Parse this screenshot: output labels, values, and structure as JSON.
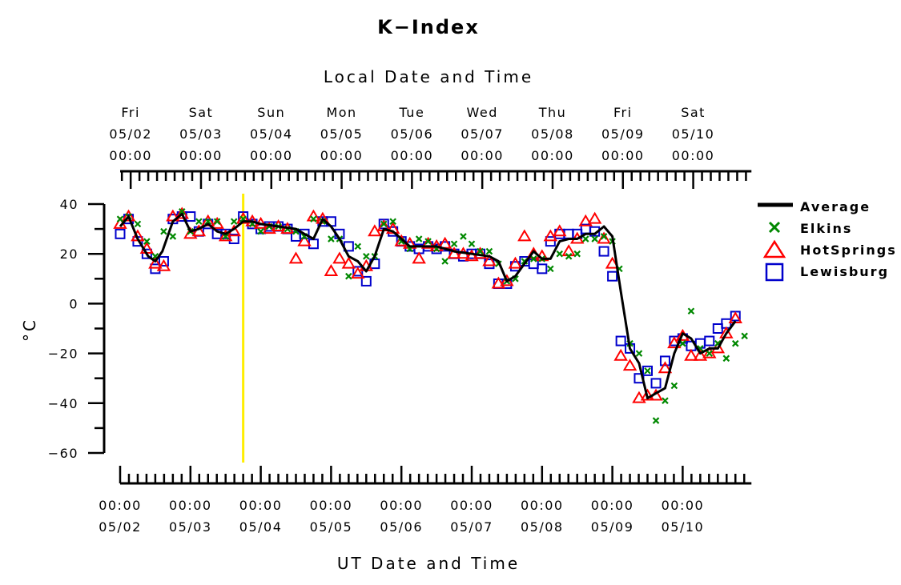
{
  "chart_data": {
    "type": "scatter",
    "title": "K−Index",
    "top_axis_title": "Local Date and Time",
    "xlabel": "UT Date and Time",
    "ylabel": "°C",
    "ylim": [
      -60,
      40
    ],
    "y_ticks": [
      "40",
      "20",
      "0",
      "−20",
      "−40",
      "−60"
    ],
    "y_tick_values": [
      40,
      20,
      0,
      -20,
      -40,
      -60
    ],
    "x_range_days": [
      0,
      8.75
    ],
    "top_x_ticks": [
      {
        "day": "Fri",
        "date": "05/02",
        "time": "00:00",
        "x": 0.15
      },
      {
        "day": "Sat",
        "date": "05/03",
        "time": "00:00",
        "x": 1.15
      },
      {
        "day": "Sun",
        "date": "05/04",
        "time": "00:00",
        "x": 2.15
      },
      {
        "day": "Mon",
        "date": "05/05",
        "time": "00:00",
        "x": 3.15
      },
      {
        "day": "Tue",
        "date": "05/06",
        "time": "00:00",
        "x": 4.15
      },
      {
        "day": "Wed",
        "date": "05/07",
        "time": "00:00",
        "x": 5.15
      },
      {
        "day": "Thu",
        "date": "05/08",
        "time": "00:00",
        "x": 6.15
      },
      {
        "day": "Fri",
        "date": "05/09",
        "time": "00:00",
        "x": 7.15
      },
      {
        "day": "Sat",
        "date": "05/10",
        "time": "00:00",
        "x": 8.15
      }
    ],
    "bottom_x_ticks": [
      {
        "time": "00:00",
        "date": "05/02",
        "x": 0
      },
      {
        "time": "00:00",
        "date": "05/03",
        "x": 1
      },
      {
        "time": "00:00",
        "date": "05/04",
        "x": 2
      },
      {
        "time": "00:00",
        "date": "05/05",
        "x": 3
      },
      {
        "time": "00:00",
        "date": "05/06",
        "x": 4
      },
      {
        "time": "00:00",
        "date": "05/07",
        "x": 5
      },
      {
        "time": "00:00",
        "date": "05/08",
        "x": 6
      },
      {
        "time": "00:00",
        "date": "05/09",
        "x": 7
      },
      {
        "time": "00:00",
        "date": "05/10",
        "x": 8
      }
    ],
    "marker_line_x": 1.75,
    "legend": [
      {
        "name": "Average",
        "marker": "line",
        "color": "#000000"
      },
      {
        "name": "Elkins",
        "marker": "x",
        "color": "#008800"
      },
      {
        "name": "HotSprings",
        "marker": "triangle",
        "color": "#ff0000"
      },
      {
        "name": "Lewisburg",
        "marker": "square",
        "color": "#0000cc"
      }
    ],
    "series": [
      {
        "name": "Average",
        "points": [
          [
            0,
            31
          ],
          [
            0.12,
            35
          ],
          [
            0.25,
            26
          ],
          [
            0.4,
            19
          ],
          [
            0.5,
            17
          ],
          [
            0.6,
            21
          ],
          [
            0.75,
            33
          ],
          [
            0.88,
            36
          ],
          [
            1.0,
            29
          ],
          [
            1.12,
            30
          ],
          [
            1.25,
            32
          ],
          [
            1.38,
            29
          ],
          [
            1.5,
            28
          ],
          [
            1.62,
            30
          ],
          [
            1.75,
            33
          ],
          [
            1.88,
            33
          ],
          [
            2.0,
            32
          ],
          [
            2.25,
            31
          ],
          [
            2.5,
            30
          ],
          [
            2.62,
            28
          ],
          [
            2.75,
            26
          ],
          [
            2.88,
            34
          ],
          [
            3.0,
            31
          ],
          [
            3.12,
            26
          ],
          [
            3.25,
            19
          ],
          [
            3.38,
            17
          ],
          [
            3.5,
            13
          ],
          [
            3.62,
            19
          ],
          [
            3.75,
            30
          ],
          [
            3.88,
            29
          ],
          [
            4.0,
            26
          ],
          [
            4.12,
            23
          ],
          [
            4.25,
            23
          ],
          [
            4.5,
            23
          ],
          [
            4.75,
            21
          ],
          [
            5.0,
            20
          ],
          [
            5.25,
            19
          ],
          [
            5.38,
            17
          ],
          [
            5.5,
            9
          ],
          [
            5.62,
            11
          ],
          [
            5.75,
            16
          ],
          [
            5.88,
            21
          ],
          [
            6.0,
            18
          ],
          [
            6.12,
            18
          ],
          [
            6.25,
            25
          ],
          [
            6.38,
            26
          ],
          [
            6.5,
            26
          ],
          [
            6.62,
            28
          ],
          [
            6.75,
            28
          ],
          [
            6.88,
            31
          ],
          [
            7.0,
            27
          ],
          [
            7.12,
            5
          ],
          [
            7.25,
            -18
          ],
          [
            7.38,
            -24
          ],
          [
            7.5,
            -38
          ],
          [
            7.62,
            -36
          ],
          [
            7.75,
            -34
          ],
          [
            7.88,
            -20
          ],
          [
            8.0,
            -12
          ],
          [
            8.12,
            -14
          ],
          [
            8.25,
            -20
          ],
          [
            8.38,
            -18
          ],
          [
            8.5,
            -18
          ],
          [
            8.62,
            -12
          ],
          [
            8.75,
            -7
          ]
        ]
      },
      {
        "name": "Elkins",
        "points": [
          [
            0,
            34
          ],
          [
            0.12,
            35
          ],
          [
            0.25,
            32
          ],
          [
            0.38,
            25
          ],
          [
            0.5,
            19
          ],
          [
            0.62,
            29
          ],
          [
            0.75,
            27
          ],
          [
            0.88,
            37
          ],
          [
            1.0,
            29
          ],
          [
            1.12,
            33
          ],
          [
            1.25,
            33
          ],
          [
            1.38,
            33
          ],
          [
            1.5,
            27
          ],
          [
            1.62,
            33
          ],
          [
            1.75,
            34
          ],
          [
            1.88,
            32
          ],
          [
            2.0,
            29
          ],
          [
            2.12,
            31
          ],
          [
            2.25,
            31
          ],
          [
            2.38,
            30
          ],
          [
            2.5,
            29
          ],
          [
            2.62,
            27
          ],
          [
            2.75,
            34
          ],
          [
            2.88,
            33
          ],
          [
            3.0,
            26
          ],
          [
            3.12,
            26
          ],
          [
            3.25,
            11
          ],
          [
            3.38,
            23
          ],
          [
            3.5,
            19
          ],
          [
            3.62,
            19
          ],
          [
            3.75,
            32
          ],
          [
            3.88,
            33
          ],
          [
            4.0,
            25
          ],
          [
            4.12,
            22
          ],
          [
            4.25,
            26
          ],
          [
            4.38,
            25
          ],
          [
            4.5,
            22
          ],
          [
            4.62,
            17
          ],
          [
            4.75,
            24
          ],
          [
            4.88,
            27
          ],
          [
            5.0,
            24
          ],
          [
            5.12,
            21
          ],
          [
            5.25,
            21
          ],
          [
            5.38,
            16
          ],
          [
            5.5,
            9
          ],
          [
            5.62,
            10
          ],
          [
            5.75,
            17
          ],
          [
            5.88,
            18
          ],
          [
            6.0,
            18
          ],
          [
            6.12,
            14
          ],
          [
            6.25,
            20
          ],
          [
            6.38,
            19
          ],
          [
            6.5,
            20
          ],
          [
            6.62,
            26
          ],
          [
            6.75,
            26
          ],
          [
            6.88,
            27
          ],
          [
            7.0,
            25
          ],
          [
            7.1,
            14
          ],
          [
            7.25,
            -16
          ],
          [
            7.38,
            -20
          ],
          [
            7.5,
            -27
          ],
          [
            7.62,
            -47
          ],
          [
            7.75,
            -39
          ],
          [
            7.88,
            -33
          ],
          [
            8.0,
            -16
          ],
          [
            8.12,
            -3
          ],
          [
            8.25,
            -18
          ],
          [
            8.38,
            -20
          ],
          [
            8.5,
            -16
          ],
          [
            8.62,
            -22
          ],
          [
            8.75,
            -16
          ],
          [
            8.88,
            -13
          ]
        ]
      },
      {
        "name": "HotSprings",
        "points": [
          [
            0,
            32
          ],
          [
            0.12,
            35
          ],
          [
            0.25,
            27
          ],
          [
            0.38,
            22
          ],
          [
            0.5,
            16
          ],
          [
            0.62,
            15
          ],
          [
            0.75,
            35
          ],
          [
            0.88,
            36
          ],
          [
            1.0,
            28
          ],
          [
            1.12,
            29
          ],
          [
            1.25,
            33
          ],
          [
            1.38,
            32
          ],
          [
            1.5,
            27
          ],
          [
            1.62,
            29
          ],
          [
            1.75,
            34
          ],
          [
            1.88,
            33
          ],
          [
            2.0,
            32
          ],
          [
            2.12,
            30
          ],
          [
            2.25,
            31
          ],
          [
            2.38,
            30
          ],
          [
            2.5,
            18
          ],
          [
            2.62,
            25
          ],
          [
            2.75,
            35
          ],
          [
            2.88,
            34
          ],
          [
            3.0,
            13
          ],
          [
            3.12,
            18
          ],
          [
            3.25,
            16
          ],
          [
            3.38,
            12
          ],
          [
            3.5,
            15
          ],
          [
            3.62,
            29
          ],
          [
            3.75,
            31
          ],
          [
            3.88,
            30
          ],
          [
            4.0,
            25
          ],
          [
            4.12,
            24
          ],
          [
            4.25,
            18
          ],
          [
            4.38,
            24
          ],
          [
            4.5,
            23
          ],
          [
            4.62,
            24
          ],
          [
            4.75,
            20
          ],
          [
            4.88,
            20
          ],
          [
            5.0,
            19
          ],
          [
            5.12,
            20
          ],
          [
            5.25,
            17
          ],
          [
            5.38,
            8
          ],
          [
            5.5,
            9
          ],
          [
            5.62,
            16
          ],
          [
            5.75,
            27
          ],
          [
            5.88,
            20
          ],
          [
            6.0,
            19
          ],
          [
            6.12,
            27
          ],
          [
            6.25,
            29
          ],
          [
            6.38,
            21
          ],
          [
            6.5,
            26
          ],
          [
            6.62,
            33
          ],
          [
            6.75,
            34
          ],
          [
            6.88,
            26
          ],
          [
            7.0,
            16
          ],
          [
            7.12,
            -21
          ],
          [
            7.25,
            -25
          ],
          [
            7.38,
            -38
          ],
          [
            7.5,
            -37
          ],
          [
            7.62,
            -37
          ],
          [
            7.75,
            -26
          ],
          [
            7.88,
            -16
          ],
          [
            8.0,
            -13
          ],
          [
            8.12,
            -21
          ],
          [
            8.25,
            -21
          ],
          [
            8.38,
            -20
          ],
          [
            8.5,
            -18
          ],
          [
            8.62,
            -12
          ],
          [
            8.75,
            -6
          ]
        ]
      },
      {
        "name": "Lewisburg",
        "points": [
          [
            0,
            28
          ],
          [
            0.12,
            34
          ],
          [
            0.25,
            25
          ],
          [
            0.38,
            20
          ],
          [
            0.5,
            14
          ],
          [
            0.62,
            17
          ],
          [
            0.75,
            34
          ],
          [
            0.88,
            35
          ],
          [
            1.0,
            35
          ],
          [
            1.12,
            29
          ],
          [
            1.25,
            32
          ],
          [
            1.38,
            28
          ],
          [
            1.5,
            28
          ],
          [
            1.62,
            26
          ],
          [
            1.75,
            35
          ],
          [
            1.88,
            32
          ],
          [
            2.0,
            30
          ],
          [
            2.12,
            31
          ],
          [
            2.25,
            31
          ],
          [
            2.38,
            30
          ],
          [
            2.5,
            27
          ],
          [
            2.62,
            28
          ],
          [
            2.75,
            24
          ],
          [
            2.88,
            33
          ],
          [
            3.0,
            33
          ],
          [
            3.12,
            28
          ],
          [
            3.25,
            23
          ],
          [
            3.38,
            13
          ],
          [
            3.5,
            9
          ],
          [
            3.62,
            16
          ],
          [
            3.75,
            32
          ],
          [
            3.88,
            29
          ],
          [
            4.0,
            25
          ],
          [
            4.12,
            23
          ],
          [
            4.25,
            22
          ],
          [
            4.38,
            23
          ],
          [
            4.5,
            22
          ],
          [
            4.62,
            23
          ],
          [
            4.75,
            20
          ],
          [
            4.88,
            19
          ],
          [
            5.0,
            20
          ],
          [
            5.12,
            20
          ],
          [
            5.25,
            16
          ],
          [
            5.38,
            8
          ],
          [
            5.5,
            8
          ],
          [
            5.62,
            15
          ],
          [
            5.75,
            17
          ],
          [
            5.88,
            16
          ],
          [
            6.0,
            14
          ],
          [
            6.12,
            25
          ],
          [
            6.25,
            28
          ],
          [
            6.38,
            28
          ],
          [
            6.5,
            28
          ],
          [
            6.62,
            30
          ],
          [
            6.75,
            29
          ],
          [
            6.88,
            21
          ],
          [
            7.0,
            11
          ],
          [
            7.12,
            -15
          ],
          [
            7.25,
            -18
          ],
          [
            7.38,
            -30
          ],
          [
            7.5,
            -27
          ],
          [
            7.62,
            -32
          ],
          [
            7.75,
            -23
          ],
          [
            7.88,
            -15
          ],
          [
            8.0,
            -14
          ],
          [
            8.12,
            -17
          ],
          [
            8.25,
            -16
          ],
          [
            8.38,
            -15
          ],
          [
            8.5,
            -10
          ],
          [
            8.62,
            -8
          ],
          [
            8.75,
            -5
          ]
        ]
      }
    ]
  }
}
